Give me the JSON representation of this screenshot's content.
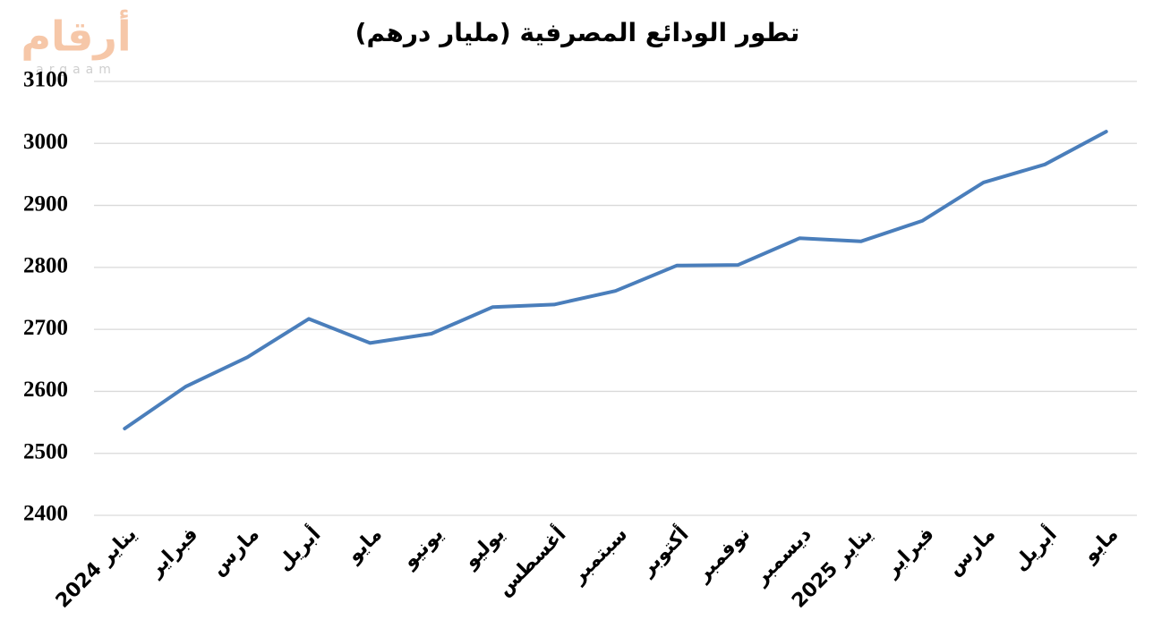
{
  "chart_data": {
    "type": "line",
    "title": "تطور الودائع المصرفية (مليار درهم)",
    "watermark_text": "أرقام",
    "watermark_subtext": "argaam",
    "categories": [
      "يناير 2024",
      "فبراير",
      "مارس",
      "أبريل",
      "مايو",
      "يونيو",
      "يوليو",
      "أغسطس",
      "سبتمبر",
      "أكتوبر",
      "نوفمبر",
      "ديسمبر",
      "يناير 2025",
      "فبراير",
      "مارس",
      "أبريل",
      "مايو"
    ],
    "values": [
      2540,
      2608,
      2655,
      2717,
      2678,
      2693,
      2736,
      2740,
      2762,
      2803,
      2804,
      2847,
      2842,
      2875,
      2937,
      2966,
      3019
    ],
    "color": "#4a7ebb",
    "ylim": [
      2400,
      3100
    ],
    "yticks": [
      2400,
      2500,
      2600,
      2700,
      2800,
      2900,
      3000,
      3100
    ],
    "grid": true
  }
}
